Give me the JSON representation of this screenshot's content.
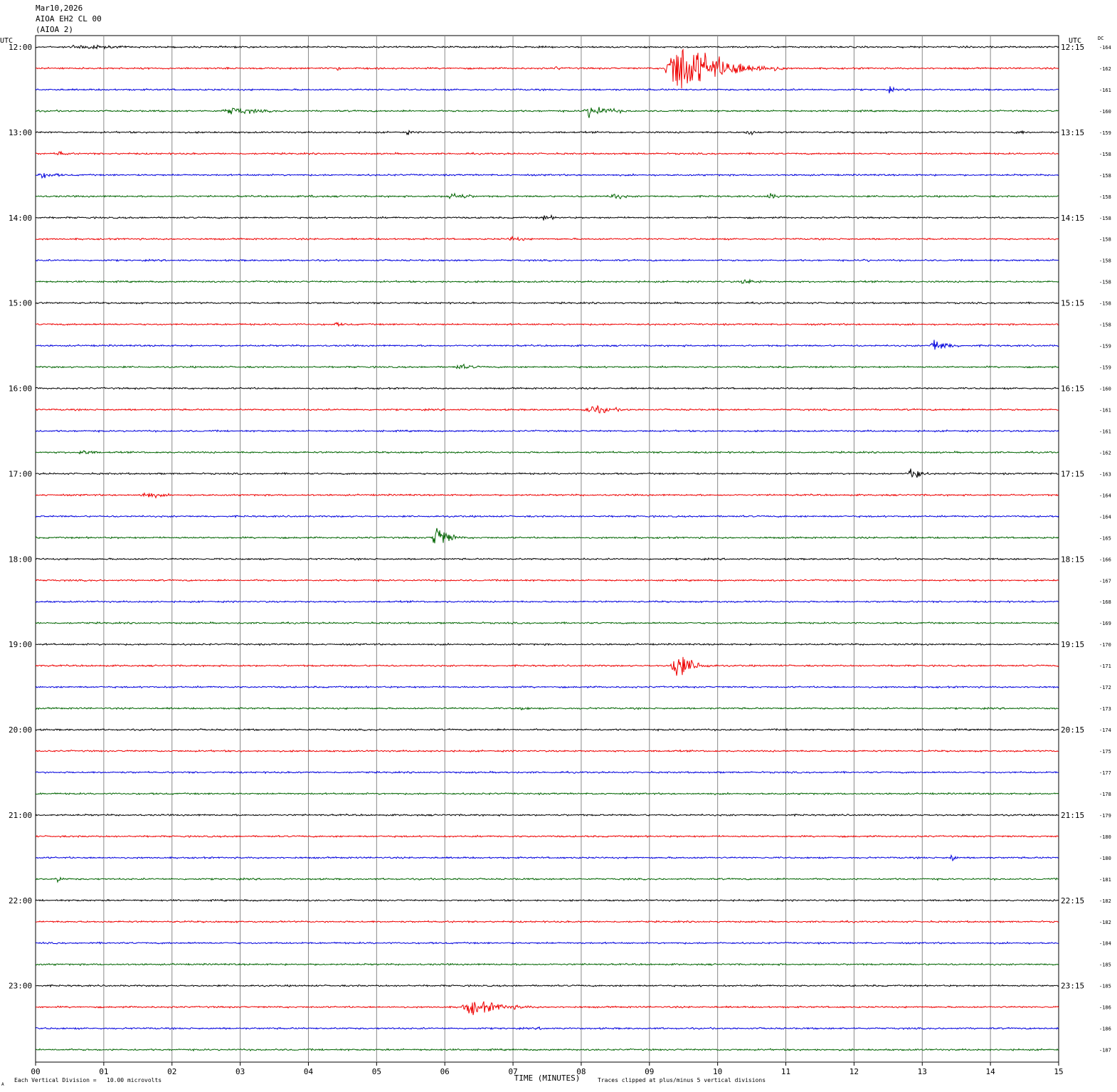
{
  "header": {
    "date": "Mar10,2026",
    "station": "AIOA EH2 CL 00",
    "station_alias": "(AIOA 2)"
  },
  "footer": {
    "scale_note": "Each Vertical Division =   10.00 microvolts",
    "clip_note": "Traces clipped at plus/minus 5 vertical divisions",
    "corner_mark": "A"
  },
  "chart_data": {
    "type": "line",
    "title": "",
    "xlabel": "TIME (MINUTES)",
    "x_range": [
      0,
      15
    ],
    "x_tick_labels": [
      "00",
      "01",
      "02",
      "03",
      "04",
      "05",
      "06",
      "07",
      "08",
      "09",
      "10",
      "11",
      "12",
      "13",
      "14",
      "15"
    ],
    "left_axis_label": "UTC",
    "right_axis_label": "UTC",
    "dc_label": "DC",
    "left_time_labels": [
      "12:00",
      "13:00",
      "14:00",
      "15:00",
      "16:00",
      "17:00",
      "18:00",
      "19:00",
      "20:00",
      "21:00",
      "22:00",
      "23:00"
    ],
    "right_time_labels": [
      "12:15",
      "13:15",
      "14:15",
      "15:15",
      "16:15",
      "17:15",
      "18:15",
      "19:15",
      "20:15",
      "21:15",
      "22:15",
      "23:15"
    ],
    "trace_colors": [
      "#000000",
      "#ee0000",
      "#0000dd",
      "#006400"
    ],
    "dc_offsets": [
      -164,
      -162,
      -161,
      -160,
      -159,
      -158,
      -158,
      -158,
      -158,
      -158,
      -158,
      -158,
      -158,
      -158,
      -159,
      -159,
      -160,
      -161,
      -161,
      -162,
      -163,
      -164,
      -164,
      -165,
      -166,
      -167,
      -168,
      -169,
      -170,
      -171,
      -172,
      -173,
      -174,
      -175,
      -177,
      -178,
      -179,
      -180,
      -180,
      -181,
      -182,
      -182,
      -184,
      -185,
      -185,
      -186,
      -186,
      -187
    ],
    "events": [
      {
        "trace": 0,
        "minute": 0.4,
        "duration": 1.8,
        "amp": 6
      },
      {
        "trace": 1,
        "minute": 9.2,
        "duration": 1.8,
        "amp": 60
      },
      {
        "trace": 1,
        "minute": 7.6,
        "duration": 0.3,
        "amp": 5
      },
      {
        "trace": 1,
        "minute": 4.4,
        "duration": 0.2,
        "amp": 6
      },
      {
        "trace": 2,
        "minute": 12.5,
        "duration": 0.2,
        "amp": 8
      },
      {
        "trace": 3,
        "minute": 2.7,
        "duration": 1.3,
        "amp": 9
      },
      {
        "trace": 3,
        "minute": 8.0,
        "duration": 1.0,
        "amp": 13
      },
      {
        "trace": 4,
        "minute": 10.4,
        "duration": 0.3,
        "amp": 10
      },
      {
        "trace": 4,
        "minute": 5.4,
        "duration": 0.3,
        "amp": 6
      },
      {
        "trace": 4,
        "minute": 14.3,
        "duration": 0.6,
        "amp": 5
      },
      {
        "trace": 5,
        "minute": 0.3,
        "duration": 0.4,
        "amp": 7
      },
      {
        "trace": 5,
        "minute": 14.9,
        "duration": 0.1,
        "amp": 6
      },
      {
        "trace": 6,
        "minute": 0.0,
        "duration": 0.8,
        "amp": 7
      },
      {
        "trace": 7,
        "minute": 6.0,
        "duration": 0.8,
        "amp": 9
      },
      {
        "trace": 7,
        "minute": 8.4,
        "duration": 0.5,
        "amp": 9
      },
      {
        "trace": 7,
        "minute": 10.7,
        "duration": 0.4,
        "amp": 8
      },
      {
        "trace": 7,
        "minute": 4.0,
        "duration": 0.3,
        "amp": 5
      },
      {
        "trace": 8,
        "minute": 7.4,
        "duration": 0.5,
        "amp": 7
      },
      {
        "trace": 9,
        "minute": 6.9,
        "duration": 0.7,
        "amp": 6
      },
      {
        "trace": 10,
        "minute": 12.1,
        "duration": 0.4,
        "amp": 4
      },
      {
        "trace": 11,
        "minute": 10.3,
        "duration": 0.8,
        "amp": 6
      },
      {
        "trace": 13,
        "minute": 4.3,
        "duration": 0.8,
        "amp": 4
      },
      {
        "trace": 14,
        "minute": 13.1,
        "duration": 0.6,
        "amp": 16
      },
      {
        "trace": 15,
        "minute": 6.1,
        "duration": 0.9,
        "amp": 6
      },
      {
        "trace": 17,
        "minute": 8.0,
        "duration": 1.1,
        "amp": 10
      },
      {
        "trace": 19,
        "minute": 0.6,
        "duration": 0.6,
        "amp": 7
      },
      {
        "trace": 20,
        "minute": 12.8,
        "duration": 0.3,
        "amp": 30
      },
      {
        "trace": 21,
        "minute": 1.5,
        "duration": 0.9,
        "amp": 7
      },
      {
        "trace": 21,
        "minute": 14.3,
        "duration": 0.1,
        "amp": 6
      },
      {
        "trace": 23,
        "minute": 5.8,
        "duration": 0.5,
        "amp": 32
      },
      {
        "trace": 29,
        "minute": 9.3,
        "duration": 0.7,
        "amp": 32
      },
      {
        "trace": 31,
        "minute": 7.0,
        "duration": 0.8,
        "amp": 4
      },
      {
        "trace": 38,
        "minute": 13.4,
        "duration": 0.2,
        "amp": 12
      },
      {
        "trace": 39,
        "minute": 0.3,
        "duration": 0.2,
        "amp": 10
      },
      {
        "trace": 39,
        "minute": 6.2,
        "duration": 0.1,
        "amp": 5
      },
      {
        "trace": 45,
        "minute": 6.2,
        "duration": 1.5,
        "amp": 16
      },
      {
        "trace": 46,
        "minute": 7.3,
        "duration": 0.8,
        "amp": 3
      }
    ]
  }
}
